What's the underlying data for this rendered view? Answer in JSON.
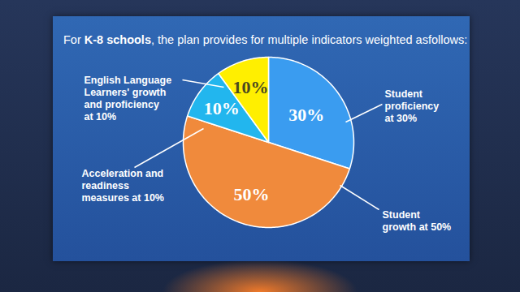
{
  "chart_data": {
    "type": "pie",
    "title": "For K-8 schools, the plan provides for multiple indicators weighted asfollows:",
    "categories": [
      "Student proficiency at 30%",
      "Student growth at 50%",
      "Acceleration and readiness measures at 10%",
      "English Language Learners' growth and proficiency at 10%"
    ],
    "values": [
      30,
      50,
      10,
      10
    ],
    "value_labels": [
      "30%",
      "50%",
      "10%",
      "10%"
    ],
    "colors": [
      "#3a9cf0",
      "#f08a3c",
      "#22b6ee",
      "#ffef00"
    ],
    "data_labels": true
  }
}
